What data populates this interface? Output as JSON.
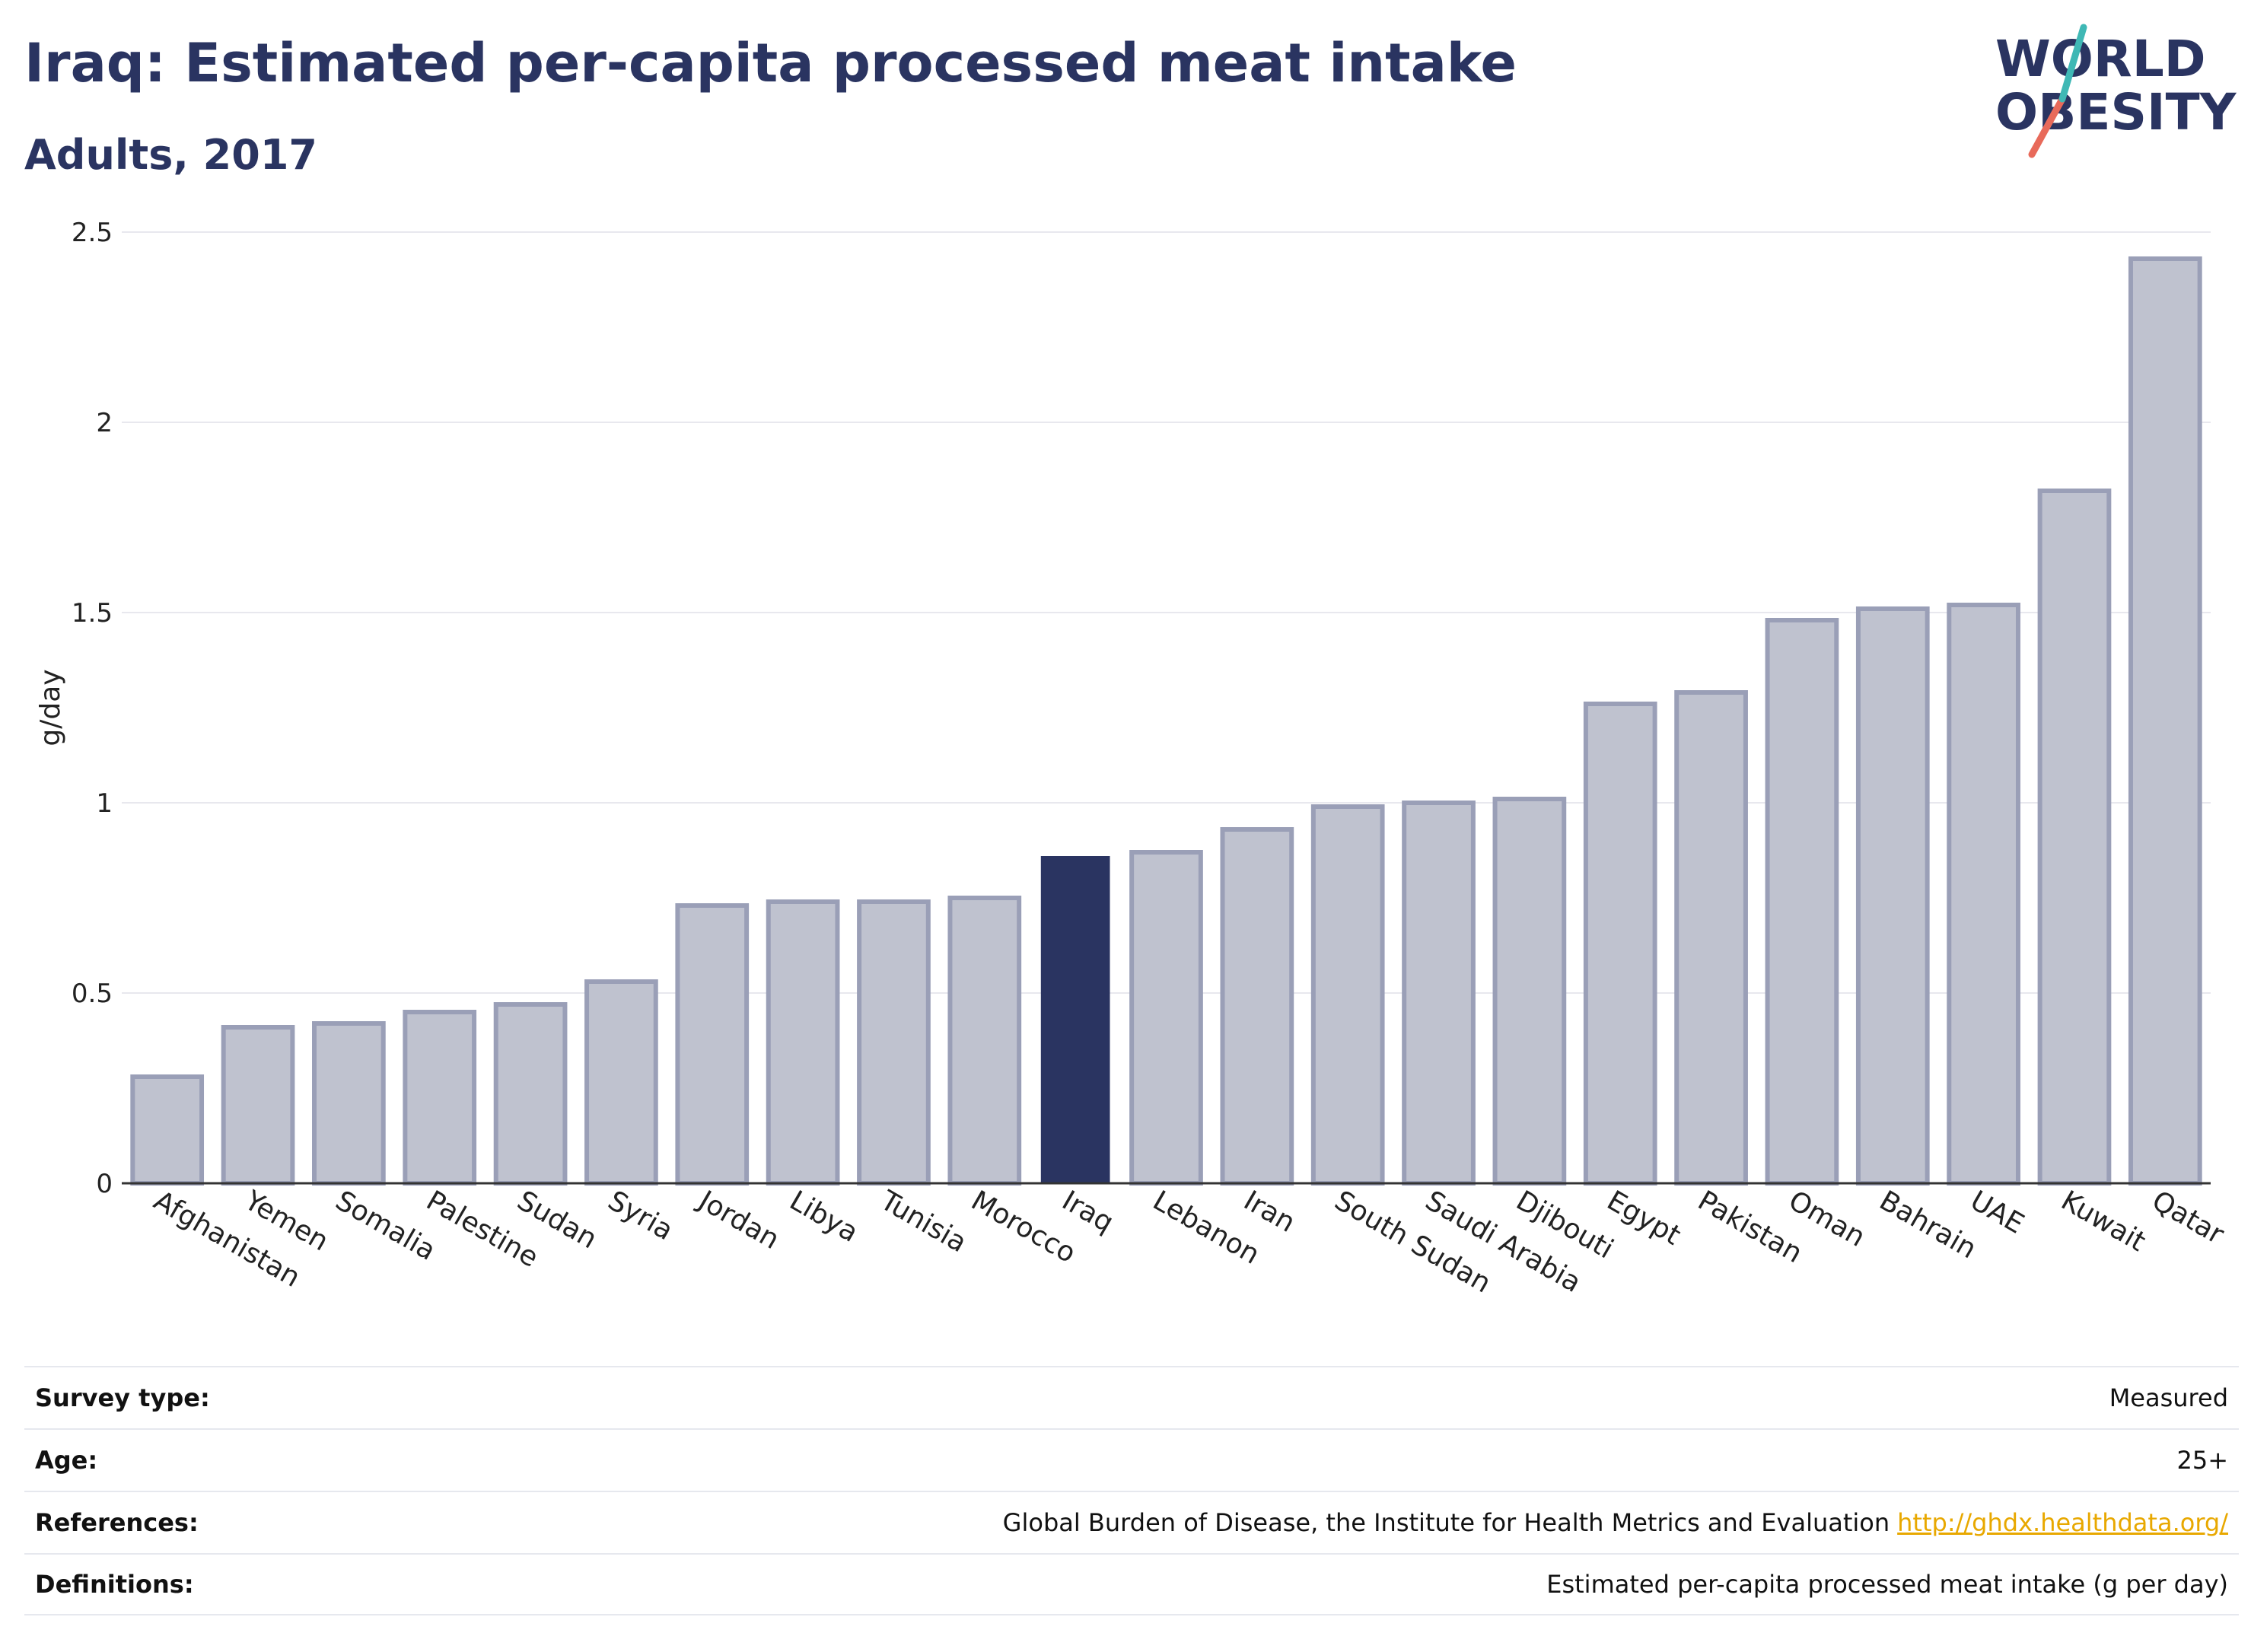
{
  "header": {
    "title": "Iraq: Estimated per-capita processed meat intake",
    "subtitle": "Adults, 2017"
  },
  "logo": {
    "line1": "WORLD",
    "line2": "OBESITY"
  },
  "colors": {
    "highlight": "#2a3461",
    "bar": "#bfc2cf",
    "bar_outline": "#9a9fb7",
    "grid": "#e8e8ee",
    "link": "#e8a800"
  },
  "chart_data": {
    "type": "bar",
    "categories": [
      "Afghanistan",
      "Yemen",
      "Somalia",
      "Palestine",
      "Sudan",
      "Syria",
      "Jordan",
      "Libya",
      "Tunisia",
      "Morocco",
      "Iraq",
      "Lebanon",
      "Iran",
      "South Sudan",
      "Saudi Arabia",
      "Djibouti",
      "Egypt",
      "Pakistan",
      "Oman",
      "Bahrain",
      "UAE",
      "Kuwait",
      "Qatar"
    ],
    "values": [
      0.28,
      0.41,
      0.42,
      0.45,
      0.47,
      0.53,
      0.73,
      0.74,
      0.74,
      0.75,
      0.86,
      0.87,
      0.93,
      0.99,
      1.0,
      1.01,
      1.26,
      1.29,
      1.48,
      1.51,
      1.52,
      1.82,
      2.43
    ],
    "highlight": "Iraq",
    "ylabel": "g/day",
    "ylim": [
      0,
      2.5
    ],
    "yticks": [
      "0",
      "0.5",
      "1",
      "1.5",
      "2",
      "2.5"
    ],
    "grid": true
  },
  "info": {
    "rows": [
      {
        "key": "Survey type:",
        "value": "Measured"
      },
      {
        "key": "Age:",
        "value": "25+"
      },
      {
        "key": "References:",
        "value": "Global Burden of Disease, the Institute for Health Metrics and Evaluation",
        "link": "http://ghdx.healthdata.org/"
      },
      {
        "key": "Definitions:",
        "value": "Estimated per-capita processed meat intake (g per day)"
      }
    ]
  }
}
